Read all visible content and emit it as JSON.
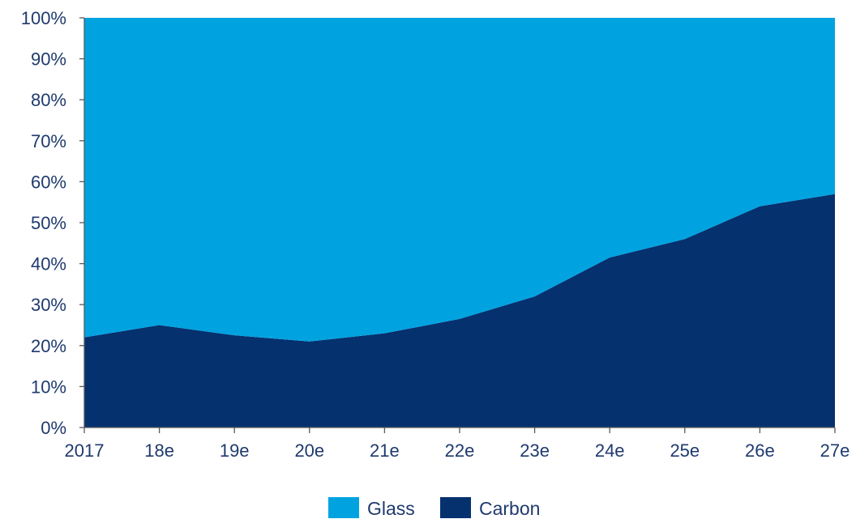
{
  "chart_data": {
    "type": "area",
    "stacked": true,
    "percent_stacked": true,
    "categories": [
      "2017",
      "18e",
      "19e",
      "20e",
      "21e",
      "22e",
      "23e",
      "24e",
      "25e",
      "26e",
      "27e"
    ],
    "series": [
      {
        "name": "Carbon",
        "color": "#05316f",
        "values": [
          22,
          25,
          22.5,
          21,
          23,
          26.5,
          32,
          41.5,
          46,
          54,
          57
        ]
      },
      {
        "name": "Glass",
        "color": "#00a3e0",
        "values": [
          78,
          75,
          77.5,
          79,
          77,
          73.5,
          68,
          58.5,
          54,
          46,
          43
        ]
      }
    ],
    "title": "",
    "xlabel": "",
    "ylabel": "",
    "ylim": [
      0,
      100
    ],
    "y_ticks": [
      "0%",
      "10%",
      "20%",
      "30%",
      "40%",
      "50%",
      "60%",
      "70%",
      "80%",
      "90%",
      "100%"
    ],
    "grid": false,
    "legend": {
      "position": "bottom",
      "entries": [
        "Glass",
        "Carbon"
      ]
    }
  }
}
